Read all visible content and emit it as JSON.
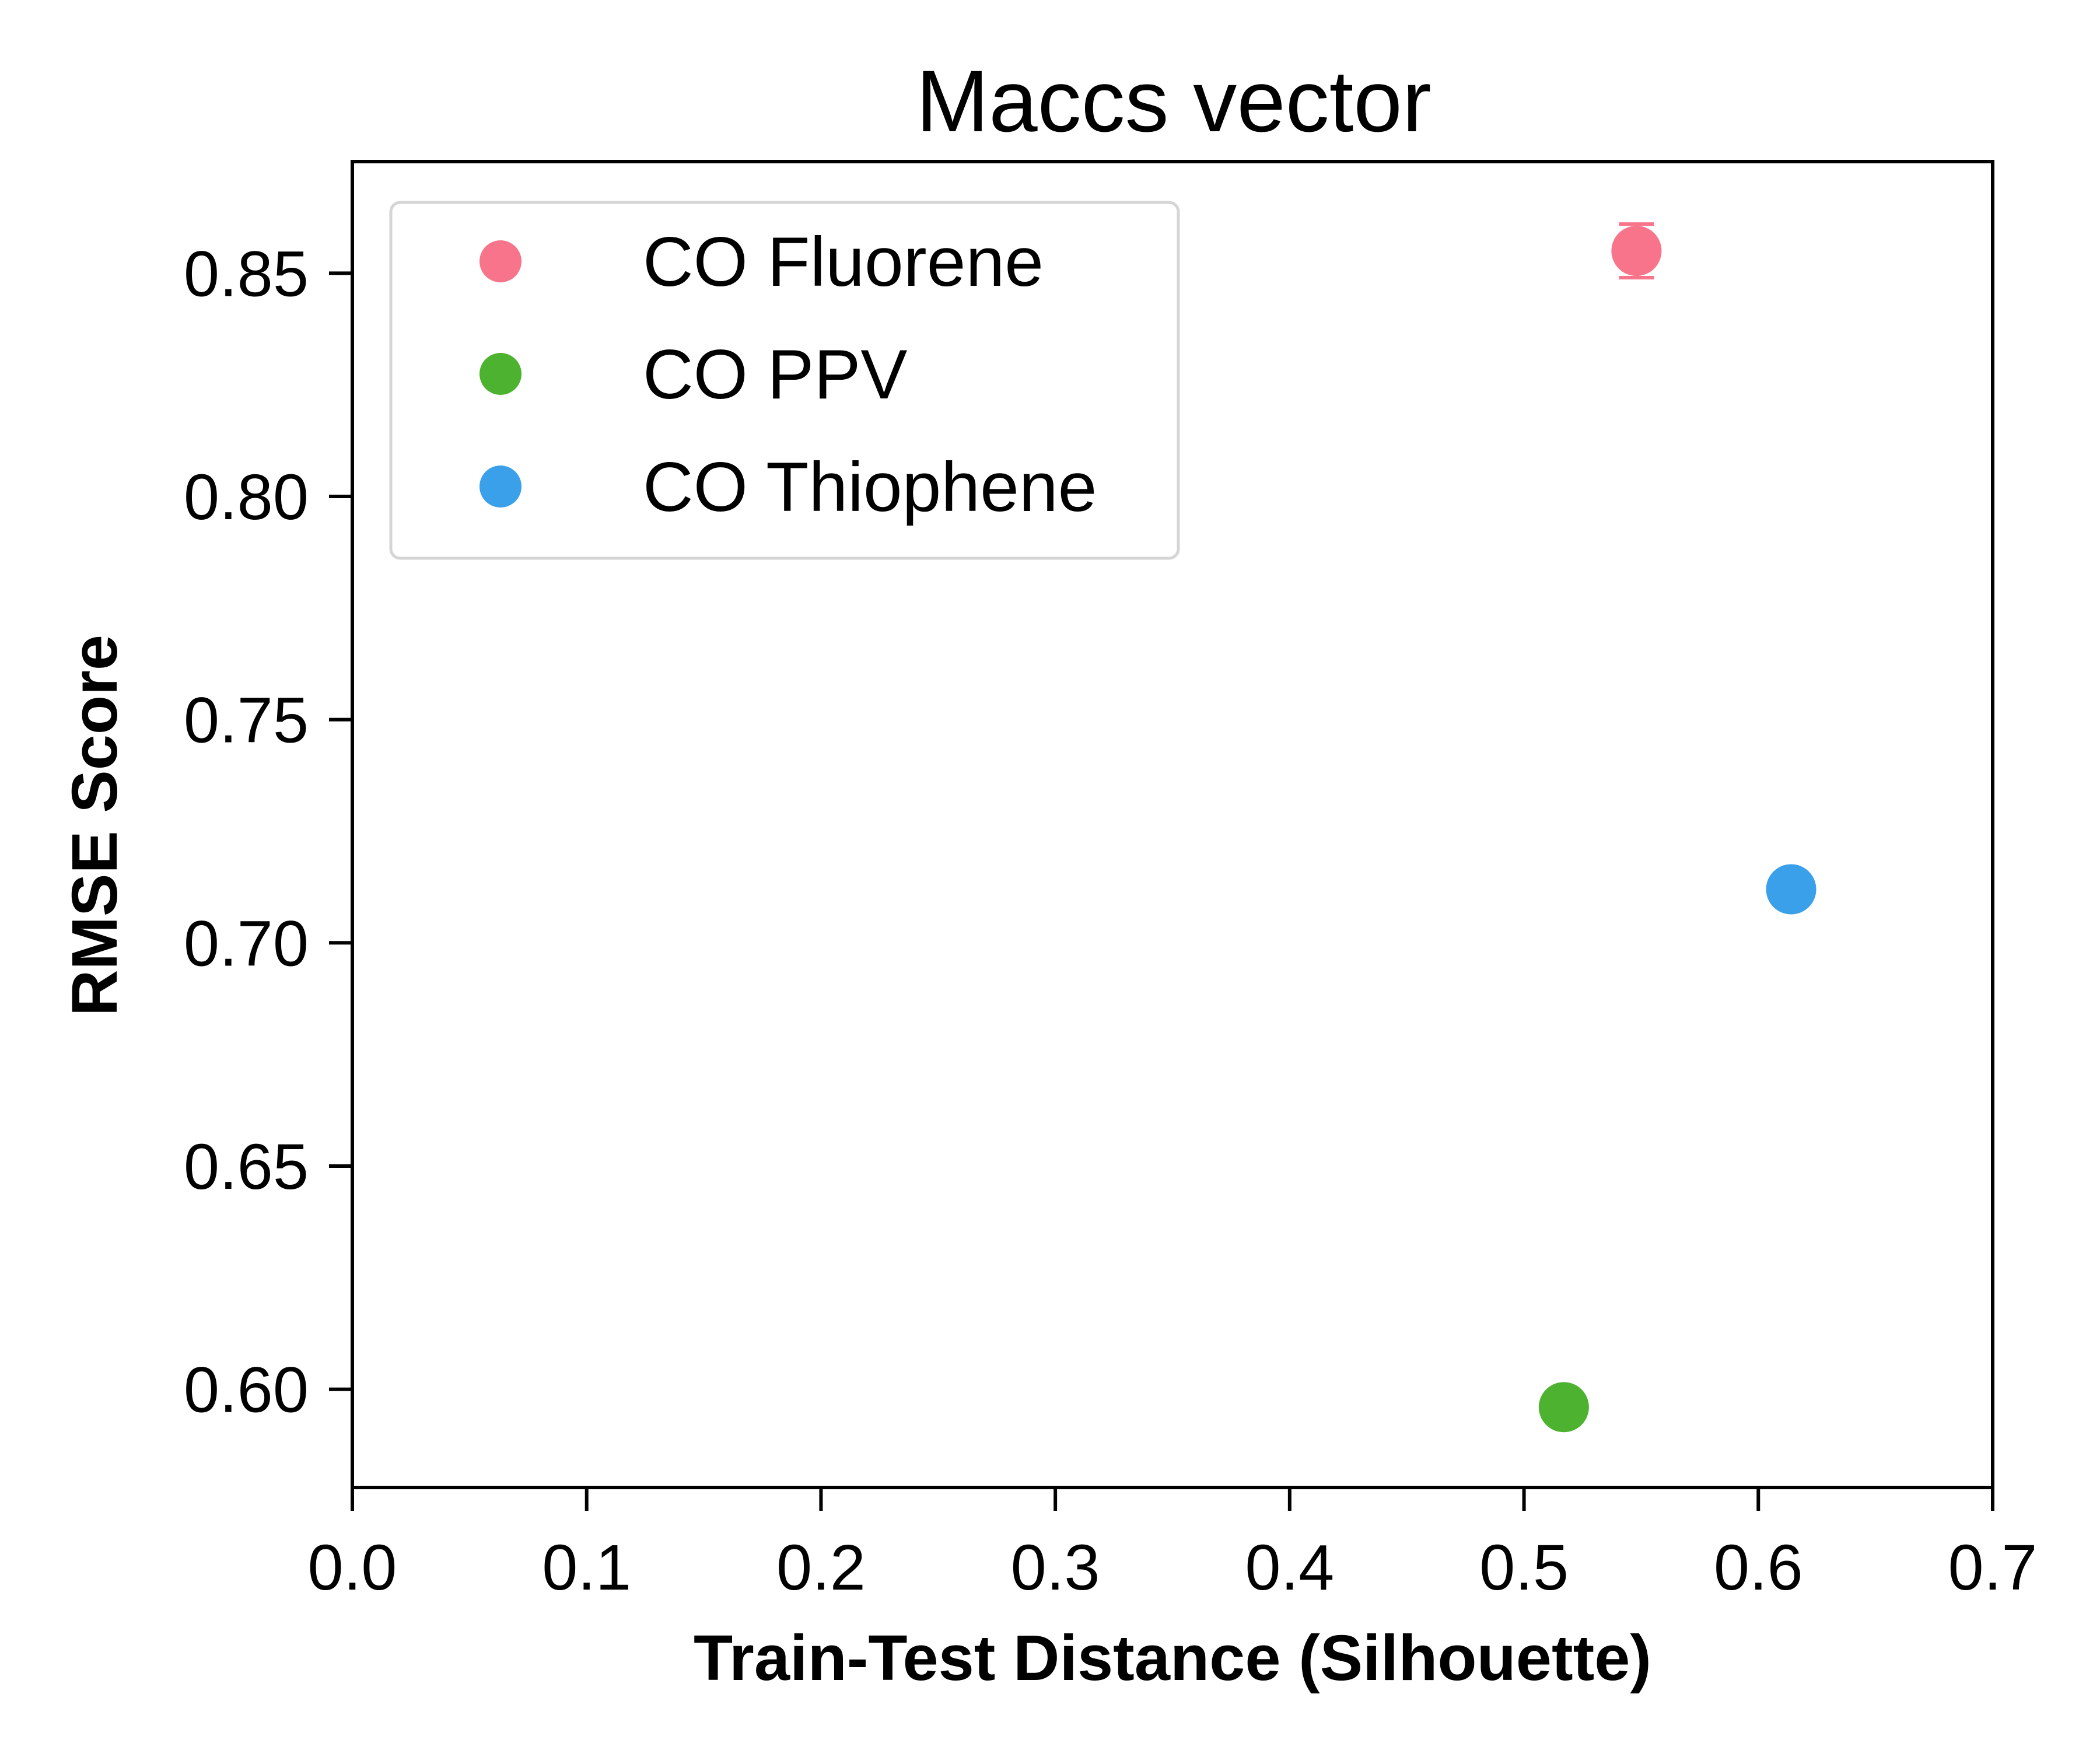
{
  "chart_data": {
    "type": "scatter",
    "title": "Maccs vector",
    "xlabel": "Train-Test Distance (Silhouette)",
    "ylabel": "RMSE Score",
    "xlim": [
      0.0,
      0.7
    ],
    "ylim": [
      0.578,
      0.875
    ],
    "xticks": [
      "0.0",
      "0.1",
      "0.2",
      "0.3",
      "0.4",
      "0.5",
      "0.6",
      "0.7"
    ],
    "yticks": [
      "0.60",
      "0.65",
      "0.70",
      "0.75",
      "0.80",
      "0.85"
    ],
    "grid": false,
    "legend_position": "upper-left",
    "series": [
      {
        "name": "CO Fluorene",
        "color": "#F7748A",
        "x": 0.548,
        "y": 0.855,
        "yerr": 0.006
      },
      {
        "name": "CO PPV",
        "color": "#4DB22F",
        "x": 0.517,
        "y": 0.596,
        "yerr": 0.0025
      },
      {
        "name": "CO Thiophene",
        "color": "#3AA0EA",
        "x": 0.614,
        "y": 0.712,
        "yerr": 0.0035
      }
    ]
  }
}
